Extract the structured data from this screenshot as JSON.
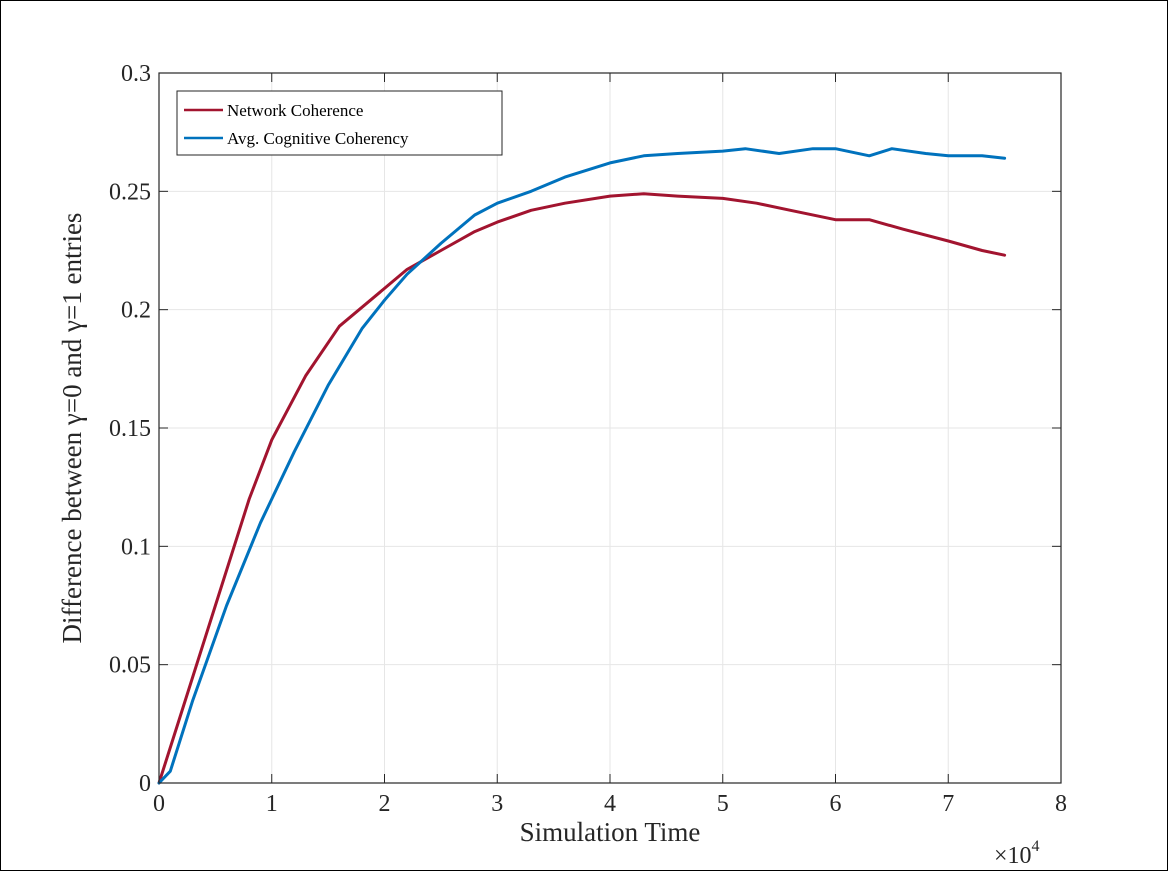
{
  "chart_data": {
    "type": "line",
    "title": "",
    "xlabel": "Simulation Time",
    "ylabel": "Difference between γ=0 and γ=1 entries",
    "x_exponent_label": "×10",
    "x_exponent_power": "4",
    "xlim": [
      0,
      8
    ],
    "ylim": [
      0,
      0.3
    ],
    "x_ticks": [
      0,
      1,
      2,
      3,
      4,
      5,
      6,
      7,
      8
    ],
    "x_tick_labels": [
      "0",
      "1",
      "2",
      "3",
      "4",
      "5",
      "6",
      "7",
      "8"
    ],
    "y_ticks": [
      0,
      0.05,
      0.1,
      0.15,
      0.2,
      0.25,
      0.3
    ],
    "y_tick_labels": [
      "0",
      "0.05",
      "0.1",
      "0.15",
      "0.2",
      "0.25",
      "0.3"
    ],
    "grid": true,
    "legend_position": "top-left",
    "series": [
      {
        "name": "Network Coherence",
        "color": "#A2142F",
        "x": [
          0,
          0.2,
          0.5,
          0.8,
          1.0,
          1.3,
          1.6,
          2.0,
          2.2,
          2.5,
          2.8,
          3.0,
          3.3,
          3.6,
          4.0,
          4.3,
          4.6,
          5.0,
          5.3,
          5.6,
          6.0,
          6.3,
          6.6,
          7.0,
          7.3,
          7.5
        ],
        "y": [
          0,
          0.03,
          0.075,
          0.12,
          0.145,
          0.172,
          0.193,
          0.209,
          0.217,
          0.225,
          0.233,
          0.237,
          0.242,
          0.245,
          0.248,
          0.249,
          0.248,
          0.247,
          0.245,
          0.242,
          0.238,
          0.238,
          0.234,
          0.229,
          0.225,
          0.223
        ]
      },
      {
        "name": "Avg. Cognitive Coherency",
        "color": "#0072BD",
        "x": [
          0,
          0.1,
          0.3,
          0.6,
          0.9,
          1.2,
          1.5,
          1.8,
          2.0,
          2.2,
          2.5,
          2.8,
          3.0,
          3.3,
          3.6,
          4.0,
          4.3,
          4.6,
          5.0,
          5.2,
          5.5,
          5.8,
          6.0,
          6.3,
          6.5,
          6.8,
          7.0,
          7.3,
          7.5
        ],
        "y": [
          0,
          0.005,
          0.035,
          0.075,
          0.11,
          0.14,
          0.168,
          0.192,
          0.204,
          0.215,
          0.228,
          0.24,
          0.245,
          0.25,
          0.256,
          0.262,
          0.265,
          0.266,
          0.267,
          0.268,
          0.266,
          0.268,
          0.268,
          0.265,
          0.268,
          0.266,
          0.265,
          0.265,
          0.264
        ]
      }
    ]
  }
}
